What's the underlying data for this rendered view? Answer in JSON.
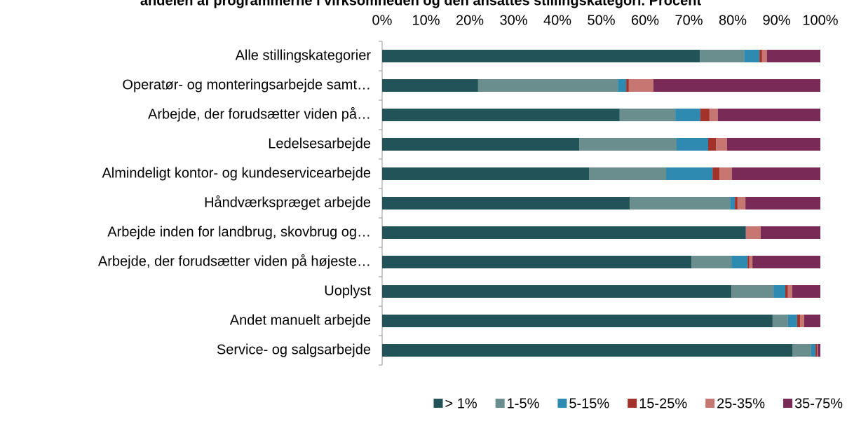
{
  "chart_data": {
    "type": "stacked_barh",
    "title": "andelen af programmerne i virksomheden og den ansattes stillingskategori. Procent",
    "categories": [
      "Alle stillingskategorier",
      "Operatør- og monteringsarbejde samt…",
      "Arbejde, der forudsætter viden på…",
      "Ledelsesarbejde",
      "Almindeligt kontor- og kundeservicearbejde",
      "Håndværkspræget arbejde",
      "Arbejde inden for landbrug, skovbrug og…",
      "Arbejde, der forudsætter viden på højeste…",
      "Uoplyst",
      "Andet manuelt arbejde",
      "Service- og salgsarbejde"
    ],
    "series": [
      {
        "name": "> 1%",
        "color": "#215358",
        "values": [
          72.5,
          21.9,
          54.2,
          45.0,
          47.2,
          56.5,
          83.0,
          70.6,
          79.7,
          89.1,
          93.6
        ]
      },
      {
        "name": "1-5%",
        "color": "#6a8d8e",
        "values": [
          10.1,
          31.9,
          12.7,
          22.2,
          17.6,
          22.9,
          0,
          9.1,
          9.6,
          3.5,
          4.3
        ]
      },
      {
        "name": "5-15%",
        "color": "#2f8ab2",
        "values": [
          3.5,
          1.9,
          5.7,
          7.2,
          10.6,
          1.1,
          0,
          3.7,
          2.7,
          2.1,
          1.0
        ]
      },
      {
        "name": "15-25%",
        "color": "#a3322a",
        "values": [
          0.6,
          0.6,
          2.1,
          1.8,
          1.6,
          0.6,
          0,
          0.4,
          0.6,
          0.7,
          0.3
        ]
      },
      {
        "name": "25-35%",
        "color": "#c77772",
        "values": [
          1.1,
          5.6,
          1.9,
          2.5,
          2.8,
          1.8,
          3.4,
          0.7,
          1.0,
          0.9,
          0.2
        ]
      },
      {
        "name": "35-75%",
        "color": "#7a2a57",
        "values": [
          12.2,
          38.1,
          23.4,
          21.3,
          20.2,
          17.1,
          13.6,
          15.5,
          6.4,
          3.7,
          0.6
        ]
      }
    ],
    "xlim": [
      0,
      100
    ],
    "xticks": [
      {
        "value": 0,
        "label": "0%"
      },
      {
        "value": 10,
        "label": "10%"
      },
      {
        "value": 20,
        "label": "20%"
      },
      {
        "value": 30,
        "label": "30%"
      },
      {
        "value": 40,
        "label": "40%"
      },
      {
        "value": 50,
        "label": "50%"
      },
      {
        "value": 60,
        "label": "60%"
      },
      {
        "value": 70,
        "label": "70%"
      },
      {
        "value": 80,
        "label": "80%"
      },
      {
        "value": 90,
        "label": "90%"
      },
      {
        "value": 100,
        "label": "100%"
      }
    ],
    "legend": "bottom-right"
  }
}
